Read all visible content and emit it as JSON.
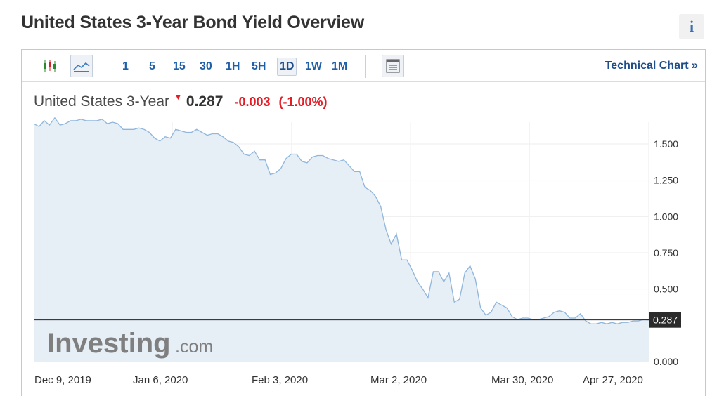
{
  "page": {
    "title": "United States 3-Year Bond Yield Overview",
    "info_icon": "info-icon"
  },
  "toolbar": {
    "icons": [
      "candlestick-icon",
      "line-chart-icon"
    ],
    "timeframes": [
      {
        "label": "1",
        "active": false
      },
      {
        "label": "5",
        "active": false
      },
      {
        "label": "15",
        "active": false
      },
      {
        "label": "30",
        "active": false
      },
      {
        "label": "1H",
        "active": false
      },
      {
        "label": "5H",
        "active": false
      },
      {
        "label": "1D",
        "active": true
      },
      {
        "label": "1W",
        "active": false
      },
      {
        "label": "1M",
        "active": false
      }
    ],
    "extra_icon": "table-view-icon",
    "technical_chart_label": "Technical Chart",
    "technical_chart_chevron": "»"
  },
  "quote": {
    "name": "United States 3-Year",
    "price": "0.287",
    "change": "-0.003",
    "change_pct": "(-1.00%)",
    "direction_icon": "down-arrow-icon",
    "color_negative": "#e31c25"
  },
  "watermark": {
    "brand": "Investing",
    "suffix": ".com"
  },
  "chart_data": {
    "type": "area",
    "title": "",
    "xlabel": "",
    "ylabel": "",
    "ylim": [
      0,
      1.65
    ],
    "y_ticks": [
      "0.000",
      "0.500",
      "0.750",
      "1.000",
      "1.250",
      "1.500"
    ],
    "x_ticks": [
      "Dec 9, 2019",
      "Jan 6, 2020",
      "Feb 3, 2020",
      "Mar 2, 2020",
      "Mar 30, 2020",
      "Apr 27, 2020"
    ],
    "last_value_label": "0.287",
    "last_value": 0.287,
    "line_color": "#8fb6dc",
    "fill_color": "#e6eef6",
    "grid": true,
    "series": [
      {
        "values": [
          1.64,
          1.62,
          1.66,
          1.63,
          1.68,
          1.63,
          1.64,
          1.66,
          1.66,
          1.67,
          1.66,
          1.66,
          1.66,
          1.67,
          1.64,
          1.65,
          1.64,
          1.6,
          1.6,
          1.6,
          1.61,
          1.6,
          1.58,
          1.54,
          1.52,
          1.55,
          1.54,
          1.6,
          1.59,
          1.58,
          1.58,
          1.6,
          1.58,
          1.56,
          1.57,
          1.57,
          1.55,
          1.52,
          1.51,
          1.48,
          1.43,
          1.42,
          1.45,
          1.39,
          1.39,
          1.29,
          1.3,
          1.33,
          1.4,
          1.43,
          1.43,
          1.38,
          1.37,
          1.41,
          1.42,
          1.42,
          1.4,
          1.39,
          1.38,
          1.39,
          1.35,
          1.31,
          1.31,
          1.2,
          1.18,
          1.14,
          1.07,
          0.91,
          0.81,
          0.88,
          0.7,
          0.7,
          0.63,
          0.55,
          0.5,
          0.44,
          0.62,
          0.62,
          0.55,
          0.61,
          0.41,
          0.43,
          0.61,
          0.66,
          0.57,
          0.37,
          0.32,
          0.34,
          0.41,
          0.39,
          0.37,
          0.31,
          0.29,
          0.3,
          0.3,
          0.29,
          0.29,
          0.3,
          0.31,
          0.34,
          0.35,
          0.34,
          0.3,
          0.3,
          0.33,
          0.28,
          0.26,
          0.26,
          0.27,
          0.26,
          0.27,
          0.26,
          0.27,
          0.27,
          0.28,
          0.28,
          0.29,
          0.287
        ]
      }
    ]
  }
}
